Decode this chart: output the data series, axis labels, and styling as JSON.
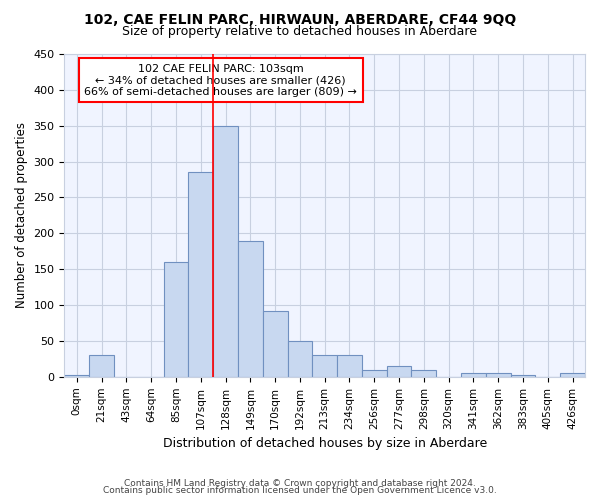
{
  "title": "102, CAE FELIN PARC, HIRWAUN, ABERDARE, CF44 9QQ",
  "subtitle": "Size of property relative to detached houses in Aberdare",
  "xlabel": "Distribution of detached houses by size in Aberdare",
  "ylabel": "Number of detached properties",
  "bar_labels": [
    "0sqm",
    "21sqm",
    "43sqm",
    "64sqm",
    "85sqm",
    "107sqm",
    "128sqm",
    "149sqm",
    "170sqm",
    "192sqm",
    "213sqm",
    "234sqm",
    "256sqm",
    "277sqm",
    "298sqm",
    "320sqm",
    "341sqm",
    "362sqm",
    "383sqm",
    "405sqm",
    "426sqm"
  ],
  "bar_values": [
    3,
    30,
    0,
    0,
    160,
    285,
    350,
    190,
    92,
    50,
    30,
    30,
    10,
    15,
    10,
    0,
    5,
    5,
    2,
    0,
    5
  ],
  "bar_color": "#c8d8f0",
  "bar_edge_color": "#7090c0",
  "vline_x": 5.5,
  "annotation_text1": "102 CAE FELIN PARC: 103sqm",
  "annotation_text2": "← 34% of detached houses are smaller (426)",
  "annotation_text3": "66% of semi-detached houses are larger (809) →",
  "footer_line1": "Contains HM Land Registry data © Crown copyright and database right 2024.",
  "footer_line2": "Contains public sector information licensed under the Open Government Licence v3.0.",
  "background_color": "#ffffff",
  "plot_bg_color": "#f0f4ff",
  "grid_color": "#c8d0e0",
  "ylim": [
    0,
    450
  ]
}
